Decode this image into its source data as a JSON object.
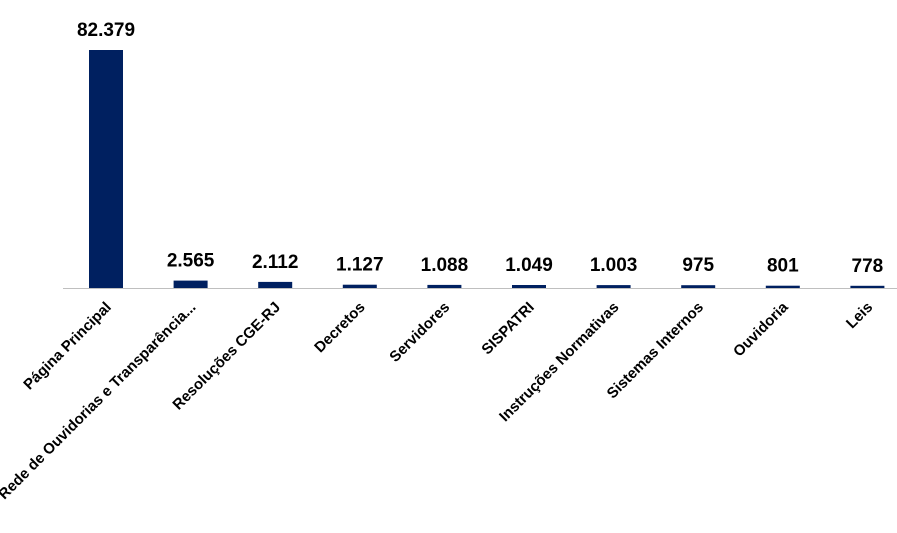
{
  "chart_data": {
    "type": "bar",
    "title": "",
    "xlabel": "",
    "ylabel": "",
    "ylim": [
      0,
      82379
    ],
    "grid": false,
    "legend": "none",
    "bar_color": "#002060",
    "axis_color": "#bfbfbf",
    "categories": [
      "Página Principal",
      "Rede de Ouvidorias e Transparência...",
      "Resoluções CGE-RJ",
      "Decretos",
      "Servidores",
      "SISPATRI",
      "Instruções Normativas",
      "Sistemas Internos",
      "Ouvidoria",
      "Leis"
    ],
    "values": [
      82379,
      2565,
      2112,
      1127,
      1088,
      1049,
      1003,
      975,
      801,
      778
    ],
    "value_labels": [
      "82.379",
      "2.565",
      "2.112",
      "1.127",
      "1.088",
      "1.049",
      "1.003",
      "975",
      "801",
      "778"
    ]
  }
}
